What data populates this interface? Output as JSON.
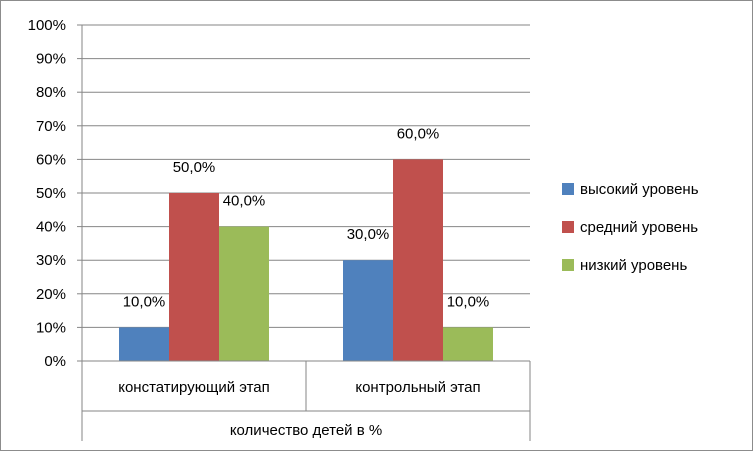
{
  "chart_data": {
    "type": "bar",
    "group_label": "количество детей в %",
    "categories": [
      "констатирующий этап",
      "контрольный этап"
    ],
    "series": [
      {
        "name": "высокий уровень",
        "color": "#4f81bd",
        "values": [
          10,
          30
        ],
        "labels": [
          "10,0%",
          "30,0%"
        ]
      },
      {
        "name": "средний уровень",
        "color": "#c0504d",
        "values": [
          50,
          60
        ],
        "labels": [
          "50,0%",
          "60,0%"
        ]
      },
      {
        "name": "низкий уровень",
        "color": "#9bbb59",
        "values": [
          40,
          10
        ],
        "labels": [
          "40,0%",
          "10,0%"
        ]
      }
    ],
    "ylim": [
      0,
      100
    ],
    "yticks": [
      "0%",
      "10%",
      "20%",
      "30%",
      "40%",
      "50%",
      "60%",
      "70%",
      "80%",
      "90%",
      "100%"
    ],
    "grid": true,
    "legend_position": "right"
  }
}
